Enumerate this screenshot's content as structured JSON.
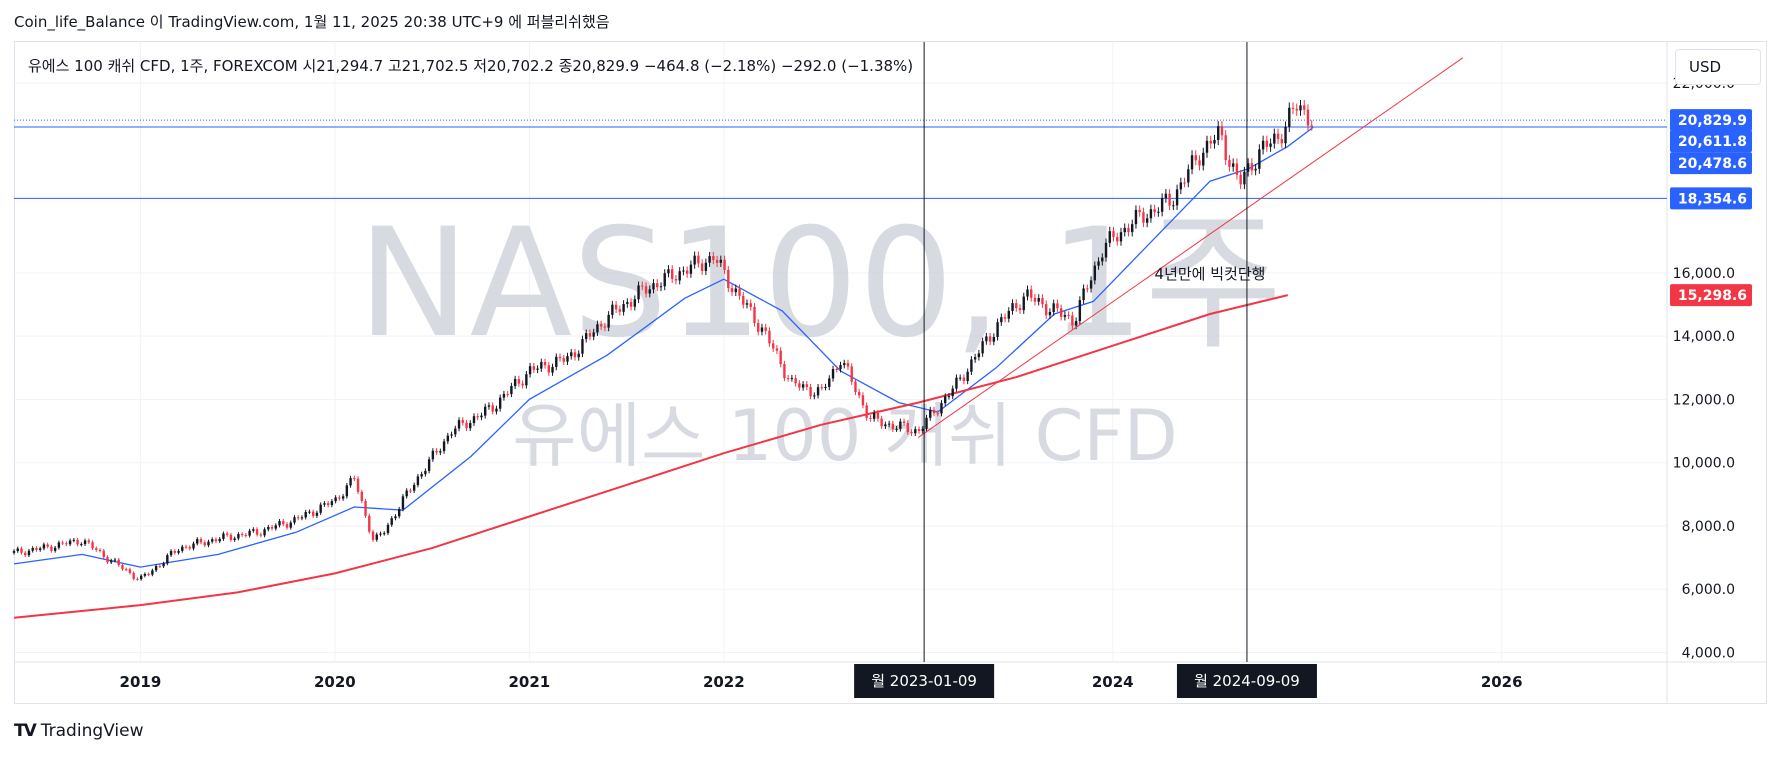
{
  "header": {
    "publish_line": "Coin_life_Balance 이 TradingView.com, 1월 11, 2025 20:38 UTC+9 에 퍼블리쉬했음"
  },
  "legend": {
    "info_line": "유에스 100 캐쉬 CFD, 1주, FOREXCOM  시21,294.7  고21,702.5  저20,702.2  종20,829.9  −464.8 (−2.18%)  −292.0 (−1.38%)"
  },
  "watermark": {
    "symbol": "NAS100, 1주",
    "name": "유에스 100 캐쉬 CFD"
  },
  "currency_button": "USD",
  "footer": {
    "brand": "TradingView",
    "mark": "TV"
  },
  "colors": {
    "up": "#131722",
    "down": "#f23645",
    "ma_short": "#2962ff",
    "ma_long": "#f23645",
    "trendline": "#f23645",
    "hline": "#2962ff",
    "vline": "#131722"
  },
  "chart_data": {
    "type": "line",
    "description_source": "weekly candlestick chart with moving averages, trend line and annotations",
    "x_axis": {
      "ticks": [
        "2019",
        "2020",
        "2021",
        "2022",
        "2024",
        "2026"
      ],
      "range": [
        2018.35,
        2026.85
      ]
    },
    "y_axis": {
      "ticks": [
        4000,
        6000,
        8000,
        10000,
        12000,
        14000,
        16000,
        22000
      ],
      "tick_labels": [
        "4,000.0",
        "6,000.0",
        "8,000.0",
        "10,000.0",
        "12,000.0",
        "14,000.0",
        "16,000.0",
        "22,000.0"
      ],
      "range": [
        3700,
        23300
      ]
    },
    "price_series": {
      "x": [
        2018.35,
        2018.5,
        2018.7,
        2018.85,
        2019.0,
        2019.2,
        2019.4,
        2019.6,
        2019.8,
        2020.0,
        2020.1,
        2020.2,
        2020.25,
        2020.4,
        2020.6,
        2020.8,
        2021.0,
        2021.2,
        2021.4,
        2021.6,
        2021.8,
        2021.95,
        2022.05,
        2022.2,
        2022.35,
        2022.5,
        2022.6,
        2022.75,
        2022.85,
        2023.0,
        2023.2,
        2023.4,
        2023.55,
        2023.7,
        2023.8,
        2023.95,
        2024.1,
        2024.3,
        2024.45,
        2024.55,
        2024.65,
        2024.75,
        2024.85,
        2024.95,
        2025.03
      ],
      "y": [
        7150,
        7300,
        7550,
        6900,
        6300,
        7300,
        7600,
        7800,
        8200,
        8800,
        9500,
        7500,
        7800,
        9300,
        11000,
        11700,
        12900,
        13300,
        14600,
        15500,
        16100,
        16500,
        15500,
        14200,
        12500,
        12200,
        13300,
        11400,
        11200,
        11000,
        12500,
        14300,
        15300,
        14800,
        14500,
        16800,
        17600,
        18300,
        19800,
        20400,
        18800,
        19800,
        20300,
        21300,
        20830
      ]
    },
    "series": [
      {
        "name": "",
        "x": [
          2018.35,
          2018.7,
          2019.0,
          2019.4,
          2019.8,
          2020.1,
          2020.35,
          2020.7,
          2021.0,
          2021.4,
          2021.8,
          2022.0,
          2022.3,
          2022.6,
          2022.9,
          2023.1,
          2023.4,
          2023.7,
          2023.9,
          2024.2,
          2024.5,
          2024.7,
          2024.9,
          2025.03
        ],
        "y": [
          6800,
          7100,
          6700,
          7100,
          7800,
          8600,
          8500,
          10200,
          12000,
          13400,
          15200,
          15800,
          14800,
          12900,
          11900,
          11600,
          13000,
          14700,
          15100,
          17000,
          18900,
          19300,
          20000,
          20600
        ]
      },
      {
        "name": "",
        "x": [
          2018.35,
          2019.0,
          2019.5,
          2020.0,
          2020.5,
          2021.0,
          2021.5,
          2022.0,
          2022.5,
          2023.0,
          2023.5,
          2024.0,
          2024.5,
          2024.9
        ],
        "y": [
          5100,
          5500,
          5900,
          6500,
          7300,
          8300,
          9300,
          10300,
          11200,
          11900,
          12700,
          13700,
          14700,
          15300
        ]
      }
    ],
    "trendline": {
      "x": [
        2023.0,
        2025.8
      ],
      "y": [
        10800,
        22800
      ]
    },
    "horizontal_lines": [
      20611.8,
      18354.6
    ],
    "vertical_lines": [
      {
        "x": 2023.03,
        "label": "월 2023-01-09"
      },
      {
        "x": 2024.69,
        "label": "월 2024-09-09"
      }
    ],
    "price_labels": [
      {
        "value": 20829.9,
        "label": "20,829.9",
        "color": "#2962ff"
      },
      {
        "value": 20611.8,
        "label": "20,611.8",
        "color": "#2962ff"
      },
      {
        "value": 20478.6,
        "label": "20,478.6",
        "color": "#2962ff"
      },
      {
        "value": 18354.6,
        "label": "18,354.6",
        "color": "#2962ff"
      },
      {
        "value": 15298.6,
        "label": "15,298.6",
        "color": "#f23645"
      }
    ],
    "annotation": {
      "text": "4년만에 빅컷단행",
      "x": 2024.5,
      "y": 16000
    },
    "grid": true
  }
}
